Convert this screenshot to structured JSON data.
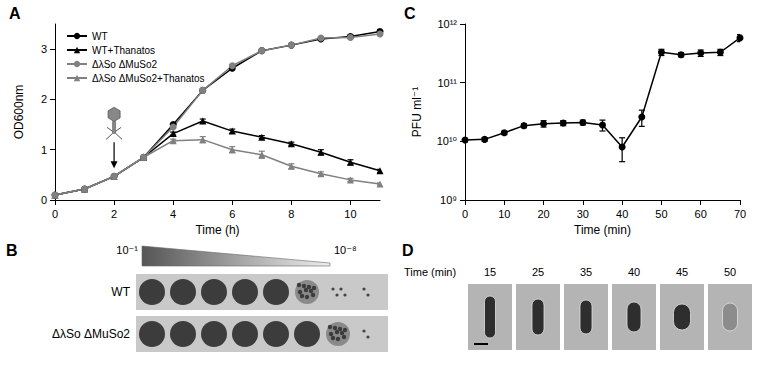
{
  "chart_data": [
    {
      "type": "line",
      "title": "A",
      "x_label": "Time (h)",
      "y_label": "OD600nm",
      "x": [
        0,
        1,
        2,
        3,
        4,
        5,
        6,
        7,
        8,
        9,
        10,
        11
      ],
      "xlim": [
        0,
        11
      ],
      "xticks": [
        0,
        2,
        4,
        6,
        8,
        10
      ],
      "ylim": [
        0,
        3.5
      ],
      "yticks": [
        0,
        1,
        2,
        3
      ],
      "grid": false,
      "legend": "upper left",
      "phage_added_at": 2,
      "series": [
        {
          "name": "WT",
          "color": "#000000",
          "marker": "circle",
          "values": [
            0.1,
            0.22,
            0.47,
            0.85,
            1.5,
            2.18,
            2.62,
            2.97,
            3.08,
            3.2,
            3.25,
            3.35
          ],
          "errors": [
            0,
            0,
            0,
            0,
            0,
            0,
            0,
            0,
            0,
            0,
            0.03,
            0.04
          ]
        },
        {
          "name": "WT+Thanatos",
          "color": "#000000",
          "marker": "triangle",
          "values": [
            0.1,
            0.22,
            0.47,
            0.85,
            1.32,
            1.57,
            1.37,
            1.25,
            1.12,
            0.95,
            0.75,
            0.58
          ],
          "errors": [
            0,
            0,
            0,
            0,
            0.03,
            0.04,
            0.04,
            0.03,
            0.03,
            0.05,
            0.05,
            0.03
          ]
        },
        {
          "name": "ΔλSo ΔMuSo2",
          "color": "#808080",
          "marker": "circle",
          "values": [
            0.1,
            0.22,
            0.47,
            0.85,
            1.45,
            2.18,
            2.67,
            2.97,
            3.08,
            3.22,
            3.23,
            3.3
          ],
          "errors": [
            0,
            0,
            0,
            0,
            0,
            0,
            0,
            0,
            0,
            0,
            0,
            0.03
          ]
        },
        {
          "name": "ΔλSo ΔMuSo2+Thanatos",
          "color": "#808080",
          "marker": "triangle",
          "values": [
            0.1,
            0.22,
            0.47,
            0.85,
            1.18,
            1.2,
            1.0,
            0.9,
            0.67,
            0.52,
            0.4,
            0.32
          ],
          "errors": [
            0,
            0,
            0,
            0,
            0.03,
            0.06,
            0.06,
            0.07,
            0.05,
            0.04,
            0.03,
            0.02
          ]
        }
      ]
    },
    {
      "type": "line",
      "title": "C",
      "x_label": "Time (min)",
      "y_label": "PFU ml⁻¹",
      "log": "y",
      "grid": false,
      "x": [
        0,
        5,
        10,
        15,
        20,
        25,
        30,
        35,
        40,
        45,
        50,
        55,
        60,
        65,
        70
      ],
      "xlim": [
        0,
        70
      ],
      "xticks": [
        0,
        10,
        20,
        30,
        40,
        50,
        60,
        70
      ],
      "ylim": [
        1000000000,
        1000000000000
      ],
      "yticks": [
        {
          "value": 1000000000,
          "label": "10⁹"
        },
        {
          "value": 10000000000,
          "label": "10¹⁰"
        },
        {
          "value": 100000000000,
          "label": "10¹¹"
        },
        {
          "value": 1000000000000,
          "label": "10¹²"
        }
      ],
      "series": [
        {
          "name": "PFU",
          "color": "#000000",
          "marker": "circle",
          "values": [
            10500000000,
            10800000000,
            14000000000,
            18500000000,
            20000000000,
            20500000000,
            21000000000,
            19000000000,
            8000000000,
            26000000000,
            330000000000,
            300000000000,
            320000000000,
            330000000000,
            580000000000
          ],
          "errors": [
            800000000,
            800000000,
            1000000000,
            1500000000,
            2500000000,
            2000000000,
            2000000000,
            4000000000,
            3500000000,
            8000000000,
            40000000000,
            25000000000,
            40000000000,
            40000000000,
            80000000000
          ]
        }
      ]
    }
  ],
  "spot_assay": {
    "label": "B",
    "dilution_start": "10⁻¹",
    "dilution_end": "10⁻⁸",
    "rows": [
      "WT",
      "ΔλSo ΔMuSo2"
    ]
  },
  "microscopy": {
    "label": "D",
    "axis_label": "Time (min)",
    "times": [
      15,
      25,
      35,
      40,
      45,
      50
    ]
  }
}
